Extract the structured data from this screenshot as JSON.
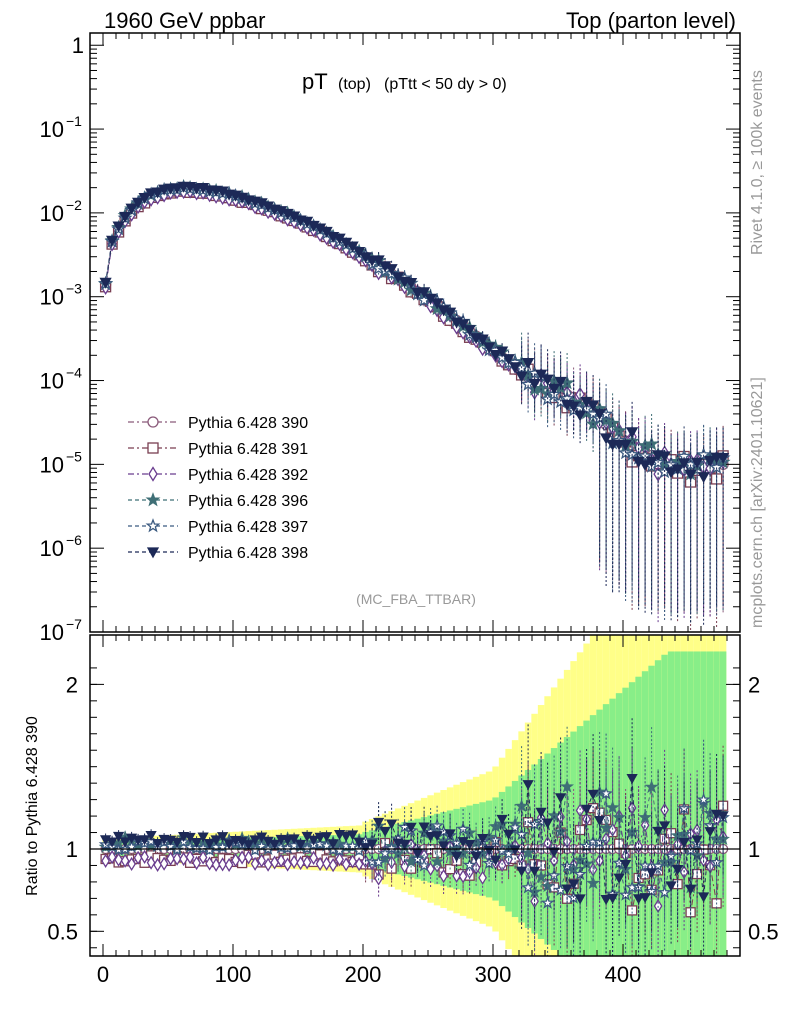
{
  "header": {
    "left_label": "1960 GeV ppbar",
    "right_label": "Top (parton level)",
    "side_label_rivet": "Rivet 4.1.0, ≥ 100k events",
    "side_label_mcplots": "mcplots.cern.ch [arXiv:2401.10621]",
    "analysis_tag": "(MC_FBA_TTBAR)"
  },
  "chart_data": {
    "type": "line",
    "title_main": "pT",
    "title_sub": "(top)",
    "title_cut": "(pTtt < 50 dy > 0)",
    "xlim": [
      -10,
      490
    ],
    "x_ticks": [
      0,
      100,
      200,
      300,
      400
    ],
    "top_panel": {
      "yscale": "log",
      "ylim": [
        1e-07,
        1.4
      ],
      "y_ticks": [
        {
          "v": 1,
          "base": "1",
          "exp": ""
        },
        {
          "v": 0.1,
          "base": "10",
          "exp": "−1"
        },
        {
          "v": 0.01,
          "base": "10",
          "exp": "−2"
        },
        {
          "v": 0.001,
          "base": "10",
          "exp": "−3"
        },
        {
          "v": 0.0001,
          "base": "10",
          "exp": "−4"
        },
        {
          "v": 1e-05,
          "base": "10",
          "exp": "−5"
        },
        {
          "v": 1e-06,
          "base": "10",
          "exp": "−6"
        },
        {
          "v": 1e-07,
          "base": "10",
          "exp": "−7"
        }
      ],
      "reference_points": [
        [
          2,
          0.0014
        ],
        [
          7,
          0.0045
        ],
        [
          15,
          0.008
        ],
        [
          25,
          0.012
        ],
        [
          35,
          0.0155
        ],
        [
          45,
          0.0178
        ],
        [
          55,
          0.019
        ],
        [
          65,
          0.0193
        ],
        [
          75,
          0.0188
        ],
        [
          85,
          0.0178
        ],
        [
          95,
          0.0165
        ],
        [
          110,
          0.0142
        ],
        [
          125,
          0.0118
        ],
        [
          140,
          0.0096
        ],
        [
          155,
          0.0076
        ],
        [
          170,
          0.0058
        ],
        [
          185,
          0.0043
        ],
        [
          200,
          0.0031
        ],
        [
          215,
          0.0022
        ],
        [
          230,
          0.00155
        ],
        [
          245,
          0.00106
        ],
        [
          260,
          0.00072
        ],
        [
          275,
          0.00048
        ],
        [
          290,
          0.00031
        ],
        [
          305,
          0.0002
        ],
        [
          320,
          0.000135
        ],
        [
          335,
          0.0001
        ],
        [
          345,
          8.5e-05
        ],
        [
          355,
          7e-05
        ],
        [
          365,
          6e-05
        ],
        [
          375,
          4e-05
        ],
        [
          385,
          3.2e-05
        ],
        [
          395,
          2.2e-05
        ],
        [
          410,
          1.6e-05
        ],
        [
          425,
          1.2e-05
        ],
        [
          440,
          1e-05
        ],
        [
          455,
          1e-05
        ],
        [
          470,
          1e-05
        ],
        [
          478,
          1e-05
        ]
      ],
      "variation_factors": [
        1.0,
        0.94,
        0.93,
        1.04,
        1.02,
        1.06
      ]
    },
    "ratio_panel": {
      "ylabel": "Ratio to Pythia 6.428 390",
      "ylim": [
        0.35,
        2.3
      ],
      "y_ticks": [
        0.5,
        1,
        2
      ]
    },
    "series": [
      {
        "name": "Pythia 6.428 390",
        "color": "#8a5a7a",
        "marker": "circle-open",
        "dash": "6,3,2,3"
      },
      {
        "name": "Pythia 6.428 391",
        "color": "#7a3f52",
        "marker": "square-open",
        "dash": "6,3,2,3"
      },
      {
        "name": "Pythia 6.428 392",
        "color": "#6a3d8f",
        "marker": "diamond-open",
        "dash": "6,3,2,3"
      },
      {
        "name": "Pythia 6.428 396",
        "color": "#3f6f76",
        "marker": "star-filled",
        "dash": "4,3"
      },
      {
        "name": "Pythia 6.428 397",
        "color": "#3b5a80",
        "marker": "star-open",
        "dash": "4,3"
      },
      {
        "name": "Pythia 6.428 398",
        "color": "#1c2957",
        "marker": "triangle-down-filled",
        "dash": "4,3"
      }
    ],
    "band_colors": {
      "outer": "#ffff88",
      "inner": "#88ee88"
    }
  }
}
